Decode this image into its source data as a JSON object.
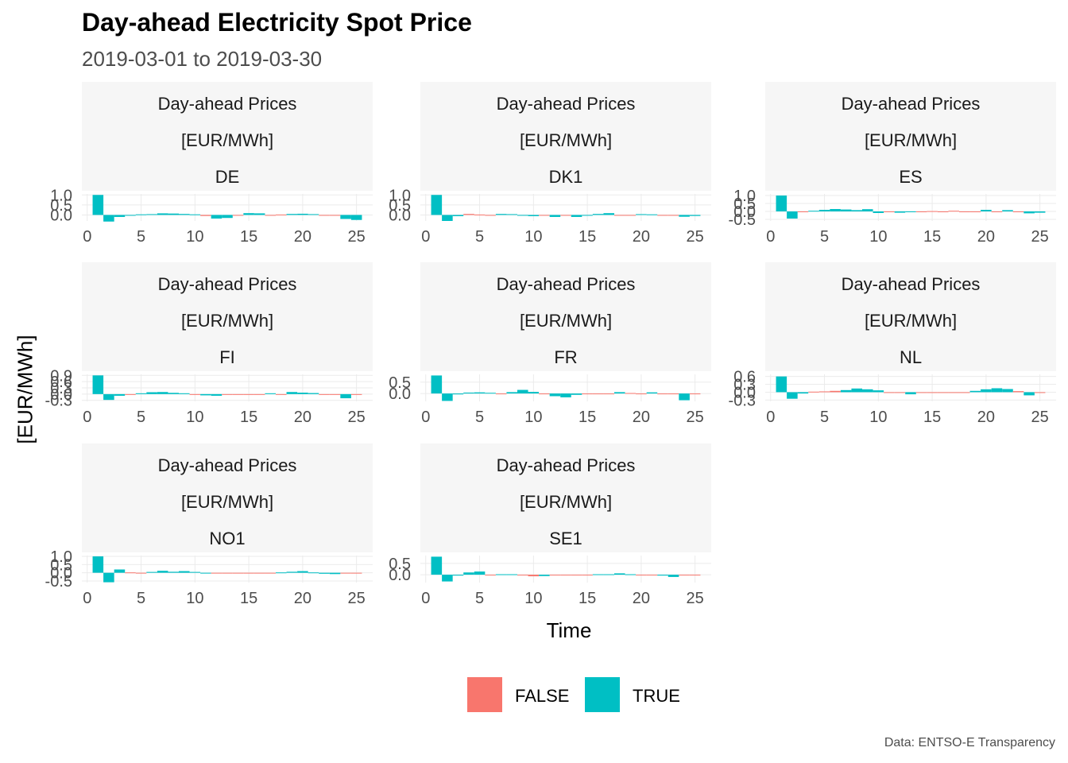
{
  "title": "Day-ahead Electricity Spot Price",
  "subtitle": "2019-03-01 to 2019-03-30",
  "caption": "Data: ENTSO-E Transparency",
  "colors": {
    "false": "#F8766D",
    "true": "#00BFC4",
    "strip_bg": "#f6f6f6",
    "grid": "#ebebeb"
  },
  "chart_data": {
    "type": "bar",
    "xlabel": "Time",
    "ylabel": "[EUR/MWh]",
    "x_ticks": [
      0,
      5,
      10,
      15,
      20,
      25
    ],
    "xlim": [
      -0.5,
      26.5
    ],
    "legend": {
      "position": "bottom",
      "entries": [
        "FALSE",
        "TRUE"
      ]
    },
    "facet_strip_lines": [
      "Day-ahead Prices",
      "[EUR/MWh]"
    ],
    "panels": [
      {
        "label": "DE",
        "ylim": [
          -0.3,
          1.05
        ],
        "y_ticks": [
          0.0,
          0.5,
          1.0
        ],
        "y_tick_labels": [
          "0.0",
          "0.5",
          "1.0"
        ],
        "values": [
          1.0,
          -0.33,
          -0.1,
          -0.04,
          0.03,
          0.04,
          0.08,
          0.07,
          0.05,
          0.03,
          -0.05,
          -0.18,
          -0.15,
          -0.03,
          0.09,
          0.08,
          0.0,
          0.02,
          0.05,
          0.06,
          0.04,
          -0.02,
          0.0,
          -0.2,
          -0.25
        ],
        "flags": [
          true,
          true,
          true,
          true,
          true,
          true,
          true,
          true,
          true,
          true,
          false,
          true,
          true,
          false,
          true,
          true,
          false,
          false,
          true,
          true,
          true,
          false,
          false,
          true,
          true
        ]
      },
      {
        "label": "DK1",
        "ylim": [
          -0.3,
          1.05
        ],
        "y_ticks": [
          0.0,
          0.5,
          1.0
        ],
        "y_tick_labels": [
          "0.0",
          "0.5",
          "1.0"
        ],
        "values": [
          1.0,
          -0.3,
          -0.06,
          0.05,
          0.02,
          0.0,
          0.05,
          0.04,
          0.0,
          -0.06,
          0.0,
          -0.1,
          0.0,
          -0.1,
          0.0,
          0.05,
          0.09,
          0.0,
          -0.03,
          0.04,
          0.03,
          0.0,
          0.0,
          -0.09,
          -0.05
        ],
        "flags": [
          true,
          true,
          true,
          false,
          false,
          false,
          true,
          true,
          true,
          true,
          false,
          true,
          false,
          true,
          true,
          true,
          true,
          false,
          false,
          true,
          true,
          false,
          false,
          true,
          true
        ]
      },
      {
        "label": "ES",
        "ylim": [
          -0.6,
          1.1
        ],
        "y_ticks": [
          -0.5,
          0.0,
          0.5,
          1.0
        ],
        "y_tick_labels": [
          "-0.5",
          "0.0",
          "0.5",
          "1.0"
        ],
        "values": [
          1.0,
          -0.45,
          -0.04,
          0.04,
          0.1,
          0.15,
          0.12,
          0.08,
          0.14,
          -0.1,
          0.0,
          -0.08,
          -0.05,
          0.0,
          0.02,
          0.0,
          0.04,
          -0.05,
          0.0,
          0.1,
          -0.05,
          0.08,
          0.0,
          -0.12,
          -0.08
        ],
        "flags": [
          true,
          true,
          false,
          true,
          true,
          true,
          true,
          true,
          true,
          true,
          false,
          true,
          true,
          false,
          false,
          false,
          false,
          false,
          false,
          true,
          false,
          true,
          false,
          true,
          true
        ]
      },
      {
        "label": "FI",
        "ylim": [
          -0.35,
          0.95
        ],
        "y_ticks": [
          -0.3,
          0.0,
          0.3,
          0.6,
          0.9
        ],
        "y_tick_labels": [
          "-0.3",
          "0.0",
          "0.3",
          "0.6",
          "0.9"
        ],
        "values": [
          0.9,
          -0.28,
          -0.08,
          0.0,
          0.04,
          0.09,
          0.1,
          0.06,
          0.04,
          0.0,
          -0.06,
          -0.08,
          0.0,
          0.0,
          0.0,
          0.0,
          0.04,
          0.0,
          0.1,
          0.07,
          0.05,
          0.0,
          -0.03,
          -0.2,
          0.0
        ],
        "flags": [
          true,
          true,
          true,
          false,
          true,
          true,
          true,
          true,
          true,
          false,
          true,
          true,
          false,
          false,
          false,
          false,
          true,
          false,
          true,
          true,
          true,
          false,
          false,
          true,
          false
        ]
      },
      {
        "label": "FR",
        "ylim": [
          -0.35,
          0.85
        ],
        "y_ticks": [
          0.0,
          0.5
        ],
        "y_tick_labels": [
          "0.0",
          "0.5"
        ],
        "values": [
          0.8,
          -0.33,
          -0.04,
          0.04,
          0.05,
          0.03,
          0.0,
          0.06,
          0.16,
          0.07,
          0.0,
          -0.12,
          -0.17,
          -0.06,
          0.0,
          0.0,
          0.0,
          0.06,
          0.02,
          0.0,
          0.05,
          0.0,
          -0.02,
          -0.3,
          0.0
        ],
        "flags": [
          true,
          true,
          true,
          true,
          true,
          true,
          false,
          true,
          true,
          true,
          false,
          true,
          true,
          true,
          false,
          false,
          false,
          true,
          false,
          false,
          true,
          false,
          false,
          true,
          false
        ]
      },
      {
        "label": "NL",
        "ylim": [
          -0.35,
          0.68
        ],
        "y_ticks": [
          -0.3,
          0.0,
          0.3,
          0.6
        ],
        "y_tick_labels": [
          "-0.3",
          "0.0",
          "0.3",
          "0.6"
        ],
        "values": [
          0.6,
          -0.25,
          -0.05,
          0.02,
          0.03,
          0.05,
          0.08,
          0.14,
          0.11,
          0.07,
          0.0,
          0.0,
          -0.08,
          0.0,
          0.0,
          0.0,
          0.0,
          0.0,
          0.05,
          0.11,
          0.15,
          0.12,
          0.04,
          -0.12,
          0.0
        ],
        "flags": [
          true,
          true,
          true,
          false,
          false,
          false,
          true,
          true,
          true,
          true,
          false,
          false,
          true,
          false,
          false,
          false,
          false,
          false,
          true,
          true,
          true,
          true,
          false,
          true,
          false
        ]
      },
      {
        "label": "NO1",
        "ylim": [
          -0.6,
          1.05
        ],
        "y_ticks": [
          -0.5,
          0.0,
          0.5,
          1.0
        ],
        "y_tick_labels": [
          "-0.5",
          "0.0",
          "0.5",
          "1.0"
        ],
        "values": [
          1.0,
          -0.58,
          0.2,
          0.02,
          0.0,
          0.05,
          0.12,
          0.06,
          0.1,
          0.05,
          -0.02,
          0.0,
          0.0,
          0.0,
          0.0,
          0.0,
          0.0,
          0.02,
          0.06,
          0.1,
          0.02,
          -0.06,
          -0.08,
          0.0,
          0.0
        ],
        "flags": [
          true,
          true,
          true,
          false,
          false,
          true,
          true,
          true,
          true,
          true,
          true,
          false,
          false,
          false,
          false,
          false,
          false,
          true,
          true,
          true,
          true,
          true,
          true,
          false,
          false
        ]
      },
      {
        "label": "SE1",
        "ylim": [
          -0.35,
          0.85
        ],
        "y_ticks": [
          0.0,
          0.5
        ],
        "y_tick_labels": [
          "0.0",
          "0.5"
        ],
        "values": [
          0.8,
          -0.3,
          -0.04,
          0.1,
          0.14,
          0.0,
          0.02,
          0.02,
          0.0,
          -0.07,
          -0.06,
          0.0,
          0.0,
          0.0,
          0.0,
          0.02,
          0.02,
          0.06,
          0.02,
          0.0,
          0.0,
          -0.04,
          -0.1,
          0.0,
          0.0
        ],
        "flags": [
          true,
          true,
          true,
          true,
          true,
          false,
          true,
          true,
          false,
          false,
          true,
          false,
          false,
          false,
          false,
          true,
          true,
          true,
          true,
          false,
          false,
          true,
          true,
          false,
          false
        ]
      }
    ]
  }
}
